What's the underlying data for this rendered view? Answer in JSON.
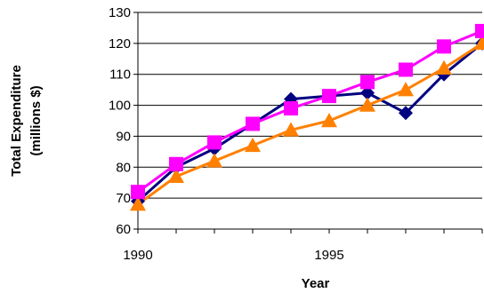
{
  "chart_data": {
    "type": "line",
    "title": "",
    "xlabel": "Year",
    "ylabel_lines": [
      "Total Expenditure",
      "(millions $)"
    ],
    "xlim": [
      1990,
      1999
    ],
    "ylim": [
      60,
      130
    ],
    "yticks": [
      60,
      70,
      80,
      90,
      100,
      110,
      120,
      130
    ],
    "xtick_labels": [
      {
        "value": 1990,
        "label": "1990"
      },
      {
        "value": 1995,
        "label": "1995"
      }
    ],
    "grid": "horizontal",
    "legend": "none",
    "x": [
      1990,
      1991,
      1992,
      1993,
      1994,
      1995,
      1996,
      1997,
      1998,
      1999
    ],
    "series": [
      {
        "color": "#000080",
        "marker": "diamond",
        "values": [
          69,
          80,
          86,
          94,
          102,
          103,
          104,
          97.5,
          110,
          120
        ]
      },
      {
        "color": "#ff8000",
        "marker": "triangle",
        "values": [
          68,
          77,
          82,
          87,
          92,
          95,
          100,
          105,
          112,
          120
        ]
      },
      {
        "color": "#ff00ff",
        "marker": "square",
        "values": [
          72,
          81,
          88,
          94,
          99,
          103,
          107.5,
          111.5,
          119,
          124
        ]
      }
    ]
  }
}
